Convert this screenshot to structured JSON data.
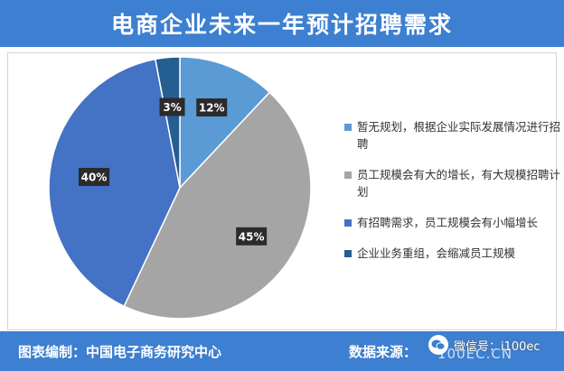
{
  "header": {
    "title": "电商企业未来一年预计招聘需求"
  },
  "footer": {
    "left": "图表编制：中国电子商务研究中心",
    "right": "数据来源：",
    "watermark_site": "100EC.CN",
    "watermark_wechat": "微信号：i100ec"
  },
  "colors": {
    "header_bg": "#3d7fd0",
    "label_bg": "#2b2b2b",
    "label_text": "#ffffff"
  },
  "chart_data": {
    "type": "pie",
    "title": "电商企业未来一年预计招聘需求",
    "legend_position": "right",
    "slices": [
      {
        "label": "暂无规划，根据企业实际发展情况进行招聘",
        "value": 12,
        "display": "12%",
        "color": "#5b9bd5"
      },
      {
        "label": "员工规模会有大的增长，有大规模招聘计划",
        "value": 45,
        "display": "45%",
        "color": "#a5a5a5"
      },
      {
        "label": "有招聘需求，员工规模会有小幅增长",
        "value": 40,
        "display": "40%",
        "color": "#4472c4"
      },
      {
        "label": "企业业务重组，会缩减员工规模",
        "value": 3,
        "display": "3%",
        "color": "#255e91"
      }
    ]
  }
}
